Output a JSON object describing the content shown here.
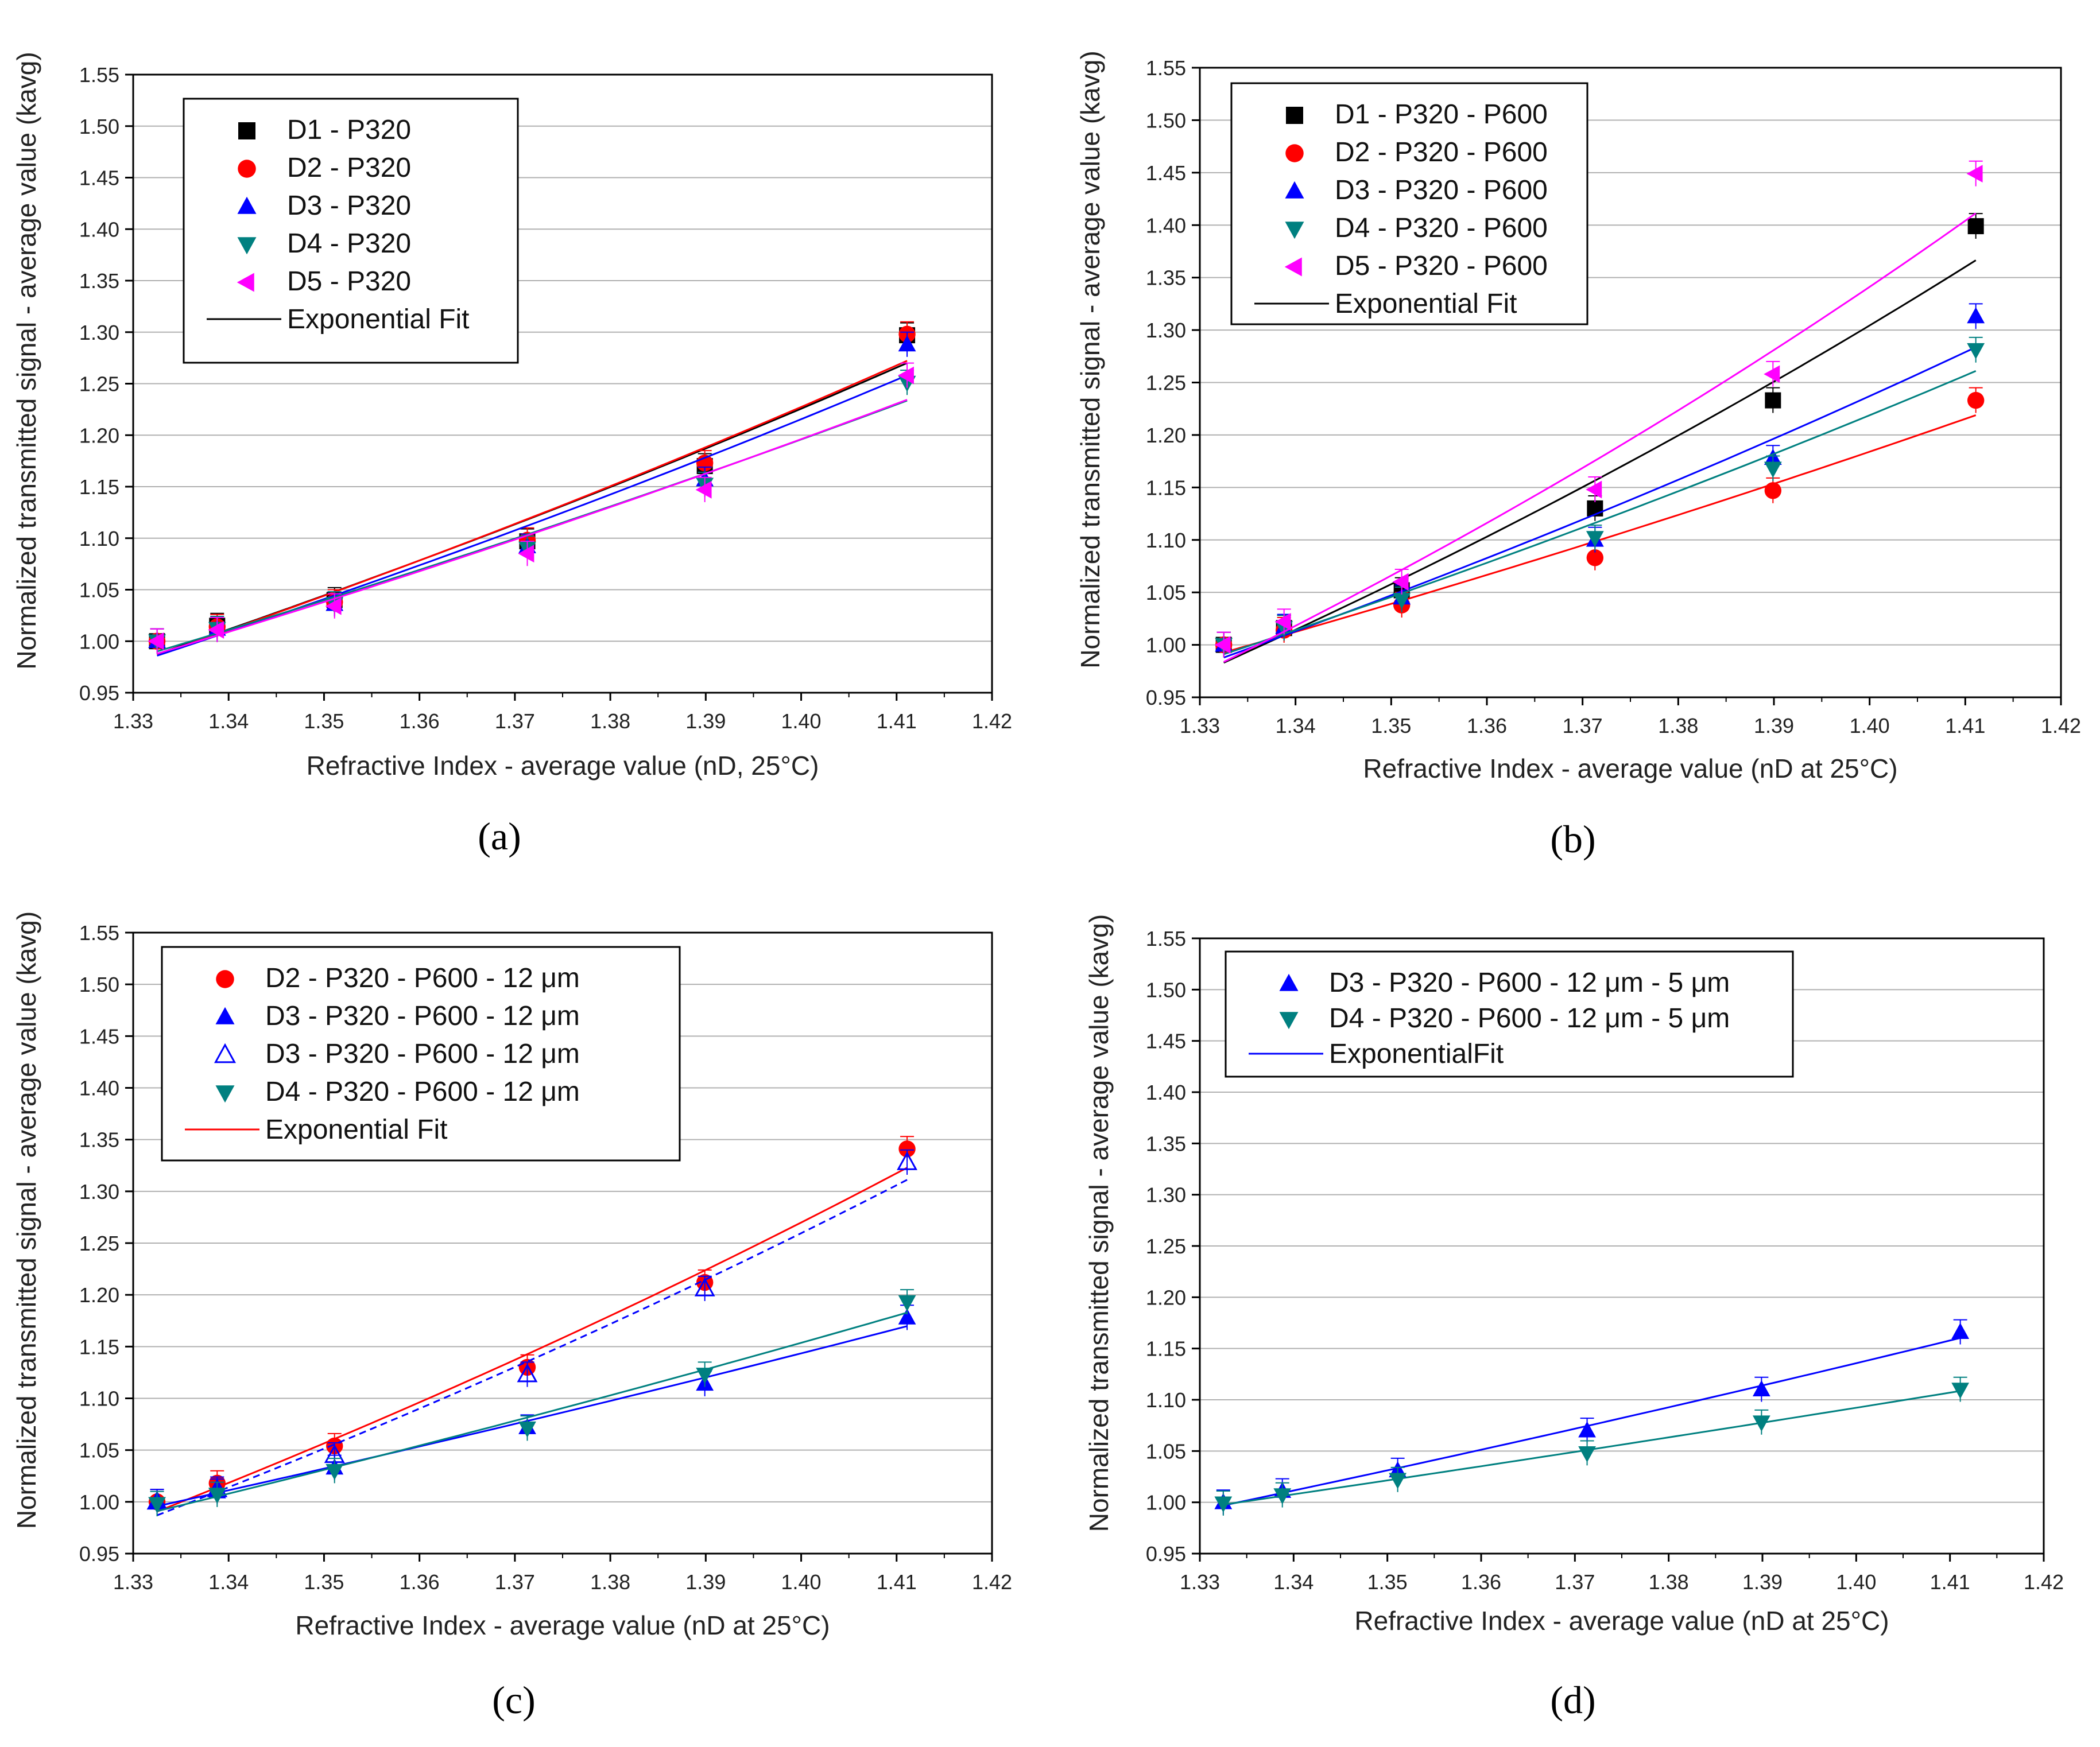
{
  "chart_data": [
    {
      "type": "scatter",
      "panel": "a",
      "panel_label": "(a)",
      "xlabel": "Refractive Index - average value (nD, 25°C)",
      "ylabel": "Normalized transmitted signal - average value (kavg)",
      "xlim": [
        1.33,
        1.42
      ],
      "ylim": [
        0.95,
        1.55
      ],
      "xticks": [
        "1.33",
        "1.34",
        "1.35",
        "1.36",
        "1.37",
        "1.38",
        "1.39",
        "1.40",
        "1.41",
        "1.42"
      ],
      "yticks": [
        "0.95",
        "1.00",
        "1.05",
        "1.10",
        "1.15",
        "1.20",
        "1.25",
        "1.30",
        "1.35",
        "1.40",
        "1.45",
        "1.50",
        "1.55"
      ],
      "grid": true,
      "legend_position": "top-left",
      "fit_label": "Exponential Fit",
      "x": [
        1.3325,
        1.3388,
        1.3511,
        1.3713,
        1.3899,
        1.4111
      ],
      "series": [
        {
          "name": "D1 - P320",
          "marker": "square",
          "color": "#000000",
          "fit_color": "#000000",
          "values": [
            1.0,
            1.015,
            1.04,
            1.097,
            1.17,
            1.297
          ]
        },
        {
          "name": "D2 - P320",
          "marker": "circle",
          "color": "#ff0000",
          "fit_color": "#ff0000",
          "values": [
            1.0,
            1.014,
            1.038,
            1.098,
            1.173,
            1.298
          ]
        },
        {
          "name": "D3 - P320",
          "marker": "triangle-up",
          "color": "#0000ff",
          "fit_color": "#0000ff",
          "values": [
            1.0,
            1.012,
            1.036,
            1.092,
            1.157,
            1.288
          ]
        },
        {
          "name": "D4 - P320",
          "marker": "triangle-down",
          "color": "#008080",
          "fit_color": "#008080",
          "values": [
            1.0,
            1.012,
            1.036,
            1.09,
            1.152,
            1.251
          ]
        },
        {
          "name": "D5 - P320",
          "marker": "triangle-left",
          "color": "#ff00ff",
          "fit_color": "#ff00ff",
          "values": [
            1.0,
            1.011,
            1.034,
            1.085,
            1.147,
            1.258
          ]
        }
      ]
    },
    {
      "type": "scatter",
      "panel": "b",
      "panel_label": "(b)",
      "xlabel": "Refractive Index - average value (nD at 25°C)",
      "ylabel": "Normalized transmitted signal - average value (kavg)",
      "xlim": [
        1.33,
        1.42
      ],
      "ylim": [
        0.95,
        1.55
      ],
      "xticks": [
        "1.33",
        "1.34",
        "1.35",
        "1.36",
        "1.37",
        "1.38",
        "1.39",
        "1.40",
        "1.41",
        "1.42"
      ],
      "yticks": [
        "0.95",
        "1.00",
        "1.05",
        "1.10",
        "1.15",
        "1.20",
        "1.25",
        "1.30",
        "1.35",
        "1.40",
        "1.45",
        "1.50",
        "1.55"
      ],
      "grid": true,
      "legend_position": "top-left",
      "fit_label": "Exponential Fit",
      "x": [
        1.3325,
        1.3388,
        1.3511,
        1.3713,
        1.3899,
        1.4111
      ],
      "series": [
        {
          "name": "D1 - P320 - P600",
          "marker": "square",
          "color": "#000000",
          "fit_color": "#000000",
          "values": [
            1.0,
            1.016,
            1.052,
            1.13,
            1.233,
            1.399
          ]
        },
        {
          "name": "D2 - P320 - P600",
          "marker": "circle",
          "color": "#ff0000",
          "fit_color": "#ff0000",
          "values": [
            1.0,
            1.014,
            1.038,
            1.083,
            1.147,
            1.233
          ]
        },
        {
          "name": "D3 - P320 - P600",
          "marker": "triangle-up",
          "color": "#0000ff",
          "fit_color": "#0000ff",
          "values": [
            1.0,
            1.017,
            1.045,
            1.1,
            1.178,
            1.313
          ]
        },
        {
          "name": "D4 - P320 - P600",
          "marker": "triangle-down",
          "color": "#008080",
          "fit_color": "#008080",
          "values": [
            1.0,
            1.016,
            1.043,
            1.102,
            1.168,
            1.281
          ]
        },
        {
          "name": "D5 - P320 - P600",
          "marker": "triangle-left",
          "color": "#ff00ff",
          "fit_color": "#ff00ff",
          "values": [
            1.0,
            1.022,
            1.06,
            1.148,
            1.258,
            1.449
          ]
        }
      ]
    },
    {
      "type": "scatter",
      "panel": "c",
      "panel_label": "(c)",
      "xlabel": "Refractive Index - average value (nD at 25°C)",
      "ylabel": "Normalized transmitted signal - average value (kavg)",
      "xlim": [
        1.33,
        1.42
      ],
      "ylim": [
        0.95,
        1.55
      ],
      "xticks": [
        "1.33",
        "1.34",
        "1.35",
        "1.36",
        "1.37",
        "1.38",
        "1.39",
        "1.40",
        "1.41",
        "1.42"
      ],
      "yticks": [
        "0.95",
        "1.00",
        "1.05",
        "1.10",
        "1.15",
        "1.20",
        "1.25",
        "1.30",
        "1.35",
        "1.40",
        "1.45",
        "1.50",
        "1.55"
      ],
      "grid": true,
      "legend_position": "top-left",
      "fit_label": "Exponential Fit",
      "x": [
        1.3325,
        1.3388,
        1.3511,
        1.3713,
        1.3899,
        1.4111
      ],
      "series": [
        {
          "name": "D2 - P320 - P600 - 12 μm",
          "marker": "circle",
          "color": "#ff0000",
          "fit_color": "#ff0000",
          "values": [
            1.0,
            1.018,
            1.054,
            1.13,
            1.212,
            1.341
          ]
        },
        {
          "name": "D3 - P320 - P600 - 12 μm",
          "marker": "triangle-up",
          "color": "#0000ff",
          "fit_color": "#0000ff",
          "values": [
            1.0,
            1.01,
            1.033,
            1.072,
            1.114,
            1.178
          ]
        },
        {
          "name": "D3 - P320 - P600 - 12 μm",
          "marker": "triangle-up-open",
          "color": "#0000ff",
          "fit_color": "#0000ff",
          "fit_dashed": true,
          "values": [
            1.0,
            1.012,
            1.045,
            1.123,
            1.206,
            1.328
          ]
        },
        {
          "name": "D4 - P320 - P600 - 12 μm",
          "marker": "triangle-down",
          "color": "#008080",
          "fit_color": "#008080",
          "values": [
            0.998,
            1.007,
            1.03,
            1.071,
            1.123,
            1.193
          ]
        }
      ]
    },
    {
      "type": "scatter",
      "panel": "d",
      "panel_label": "(d)",
      "xlabel": "Refractive Index - average value (nD at 25°C)",
      "ylabel": "Normalized transmitted signal - average value (kavg)",
      "xlim": [
        1.33,
        1.42
      ],
      "ylim": [
        0.95,
        1.55
      ],
      "xticks": [
        "1.33",
        "1.34",
        "1.35",
        "1.36",
        "1.37",
        "1.38",
        "1.39",
        "1.40",
        "1.41",
        "1.42"
      ],
      "yticks": [
        "0.95",
        "1.00",
        "1.05",
        "1.10",
        "1.15",
        "1.20",
        "1.25",
        "1.30",
        "1.35",
        "1.40",
        "1.45",
        "1.50",
        "1.55"
      ],
      "grid": true,
      "legend_position": "top-left",
      "fit_label": "ExponentialFit",
      "x": [
        1.3325,
        1.3388,
        1.3511,
        1.3713,
        1.3899,
        1.4111
      ],
      "series": [
        {
          "name": "D3 - P320 - P600 - 12 μm - 5 μm",
          "marker": "triangle-up",
          "color": "#0000ff",
          "fit_color": "#0000ff",
          "values": [
            1.0,
            1.011,
            1.031,
            1.07,
            1.11,
            1.166
          ]
        },
        {
          "name": "D4 - P320 - P600 - 12 μm - 5 μm",
          "marker": "triangle-down",
          "color": "#008080",
          "fit_color": "#008080",
          "values": [
            0.999,
            1.007,
            1.022,
            1.048,
            1.078,
            1.11
          ]
        }
      ]
    }
  ]
}
